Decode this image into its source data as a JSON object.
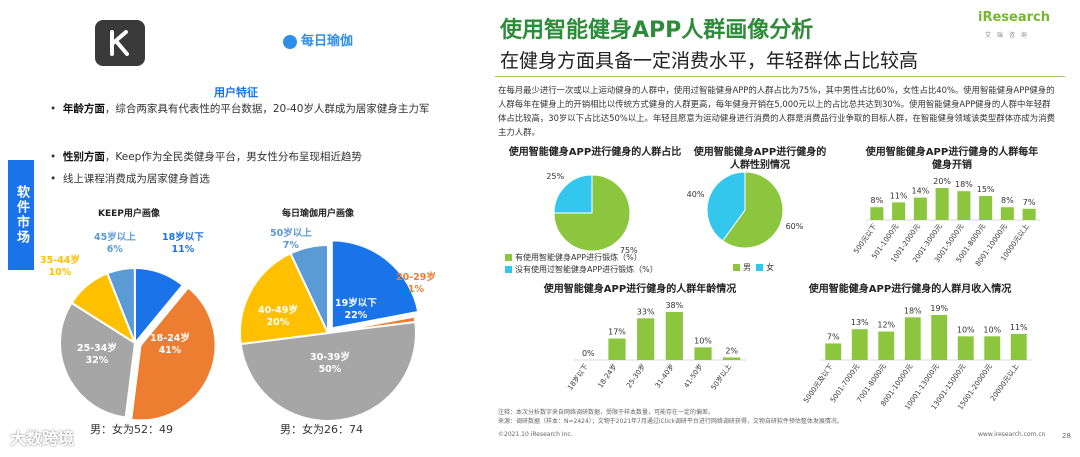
{
  "colors": {
    "green": "#8cc63f",
    "cyan": "#33c7ee",
    "blue": "#1a73e8",
    "orange": "#ed7d31",
    "gray": "#a6a6a6",
    "yellow": "#ffc000",
    "lightblue": "#5b9bd5"
  },
  "left": {
    "side_tab": "软件市场",
    "yoga_logo": "每日瑜伽",
    "user_feature": "用户特征",
    "bullets": [
      {
        "head": "年龄方面",
        "text": "，综合两家具有代表性的平台数据，20-40岁人群成为居家健身主力军"
      },
      {
        "head": "性别方面",
        "text": "，Keep作为全民类健身平台，男女性分布呈现相近趋势"
      },
      {
        "head": "",
        "text": "线上课程消费成为居家健身首选"
      }
    ],
    "keep_title": "KEEP用户画像",
    "yoga_title": "每日瑜伽用户画像",
    "keep_ratio": "男：女为52：49",
    "yoga_ratio": "男：女为26：74",
    "brand_watermark": "大数跨境"
  },
  "right": {
    "title": "使用智能健身APP人群画像分析",
    "subtitle": "在健身方面具备一定消费水平，年轻群体占比较高",
    "brand": "iResearch",
    "brand_sub": "艾 瑞 咨 询",
    "paragraph": "在每月最少进行一次或以上运动健身的人群中，使用过智能健身APP的人群占比为75%，其中男性占比60%，女性占比40%。使用智能健身APP健身的人群每年在健身上的开销相比以传统方式健身的人群更高，每年健身开销在5,000元以上的占比总共达到30%。使用智能健身APP健身的人群中年轻群体占比较高，30岁以下占比达50%以上。年轻且愿意为运动健身进行消费的人群是消费品行业争取的目标人群，在智能健身领域该类型群体亦成为消费主力人群。",
    "note": "注释：本次分析数字来自网络调研数据，受限于样本数量，可能存在一定的偏差。",
    "source": "来源：调研数据（样本：N=2424）；文物于2021年7月通过iClick调研平台进行网络调研获得，文物自研软件预估整体发展情况。",
    "copyright": "©2021.10 iResearch Inc.",
    "website": "www.iresearch.com.cn",
    "page": "28"
  },
  "chart_data": [
    {
      "type": "pie",
      "id": "keep",
      "title": "KEEP用户画像",
      "slices": [
        {
          "label": "18-24岁",
          "value": 41,
          "color": "#ed7d31"
        },
        {
          "label": "25-34岁",
          "value": 32,
          "color": "#a6a6a6"
        },
        {
          "label": "35-44岁",
          "value": 10,
          "color": "#ffc000"
        },
        {
          "label": "45岁以上",
          "value": 6,
          "color": "#5b9bd5"
        },
        {
          "label": "18岁以下",
          "value": 11,
          "color": "#1a73e8"
        }
      ]
    },
    {
      "type": "pie",
      "id": "yoga",
      "title": "每日瑜伽用户画像",
      "slices": [
        {
          "label": "19岁以下",
          "value": 22,
          "color": "#1a73e8"
        },
        {
          "label": "20-29岁",
          "value": 1,
          "color": "#ed7d31"
        },
        {
          "label": "30-39岁",
          "value": 50,
          "color": "#a6a6a6"
        },
        {
          "label": "40-49岁",
          "value": 20,
          "color": "#ffc000"
        },
        {
          "label": "50岁以上",
          "value": 7,
          "color": "#5b9bd5"
        }
      ]
    },
    {
      "type": "pie",
      "id": "usage",
      "title": "使用智能健身APP进行健身的人群占比",
      "slices": [
        {
          "label": "有使用智能健身APP进行锻炼（%）",
          "value": 75,
          "color": "#8cc63f"
        },
        {
          "label": "没有使用过智能健身APP进行锻炼（%）",
          "value": 25,
          "color": "#33c7ee"
        }
      ]
    },
    {
      "type": "pie",
      "id": "gender",
      "title": "使用智能健身APP进行健身的人群性别情况",
      "slices": [
        {
          "label": "男",
          "value": 60,
          "color": "#8cc63f"
        },
        {
          "label": "女",
          "value": 40,
          "color": "#33c7ee"
        }
      ]
    },
    {
      "type": "bar",
      "id": "spend",
      "title": "使用智能健身APP进行健身的人群每年健身开销",
      "categories": [
        "500元以下",
        "501-1000元",
        "1001-2000元",
        "2001-3000元",
        "3001-5000元",
        "5001-8000元",
        "8001-10000元",
        "10000元以上"
      ],
      "values": [
        8,
        11,
        14,
        20,
        18,
        15,
        8,
        7
      ]
    },
    {
      "type": "bar",
      "id": "age",
      "title": "使用智能健身APP进行健身的人群年龄情况",
      "categories": [
        "18岁以下",
        "18-24岁",
        "25-30岁",
        "31-40岁",
        "41-50岁",
        "50岁以上"
      ],
      "values": [
        0,
        17,
        33,
        38,
        10,
        2
      ]
    },
    {
      "type": "bar",
      "id": "income",
      "title": "使用智能健身APP进行健身的人群月收入情况",
      "categories": [
        "5000元及以下",
        "5001-7000元",
        "7001-8000元",
        "8001-10000元",
        "10001-13000元",
        "13001-15000元",
        "15001-20000元",
        "20000元以上"
      ],
      "values": [
        7,
        13,
        12,
        18,
        19,
        10,
        10,
        11
      ]
    }
  ]
}
